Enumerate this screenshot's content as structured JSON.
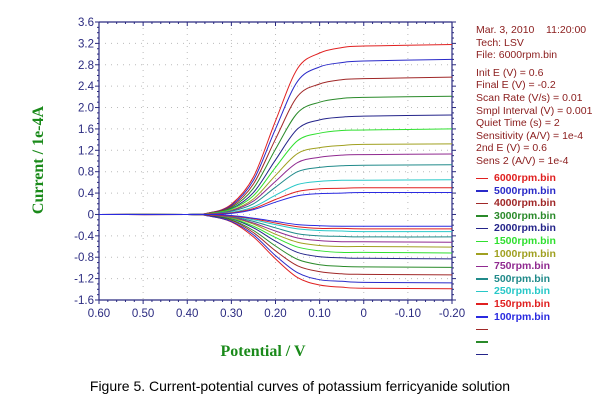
{
  "info": {
    "date": "Mar. 3, 2010    11:20:00",
    "tech": "Tech: LSV",
    "file": "File: 6000rpm.bin",
    "params": [
      "Init E (V) = 0.6",
      "Final E (V) = -0.2",
      "Scan Rate (V/s) = 0.01",
      "Smpl Interval (V) = 0.001",
      "Quiet Time (s) = 2",
      "Sensitivity (A/V) = 1e-4",
      "2nd E (V) = 0.6",
      "Sens 2 (A/V) = 1e-4"
    ]
  },
  "caption": "Figure 5. Current-potential curves of potassium ferricyanide solution",
  "chart_data": {
    "type": "line",
    "xlabel": "Potential / V",
    "ylabel": "Current / 1e-4A",
    "xlim": [
      0.6,
      -0.2
    ],
    "ylim": [
      -1.6,
      3.6
    ],
    "x_reversed": true,
    "grid": true,
    "legend_placement": "right",
    "xticks": [
      "0.60",
      "0.50",
      "0.40",
      "0.30",
      "0.20",
      "0.10",
      "0",
      "-0.10",
      "-0.20"
    ],
    "yticks": [
      "3.6",
      "3.2",
      "2.8",
      "2.4",
      "2.0",
      "1.6",
      "1.2",
      "0.8",
      "0.4",
      "0",
      "-0.4",
      "-0.8",
      "-1.2",
      "-1.6"
    ],
    "x": [
      0.6,
      0.4,
      0.35,
      0.3,
      0.25,
      0.2,
      0.15,
      0.1,
      0.05,
      0,
      -0.2
    ],
    "series": [
      {
        "name": "6000rpm.bin",
        "color": "#e02020",
        "y": [
          0,
          0,
          0.03,
          0.19,
          0.7,
          1.75,
          2.73,
          3.02,
          3.12,
          3.15,
          3.18
        ],
        "y2": [
          0,
          0,
          -0.03,
          -0.14,
          -0.42,
          -0.83,
          -1.18,
          -1.32,
          -1.36,
          -1.38,
          -1.39
        ]
      },
      {
        "name": "5000rpm.bin",
        "color": "#2a2ac8",
        "y": [
          0,
          0,
          0.03,
          0.17,
          0.64,
          1.6,
          2.49,
          2.76,
          2.84,
          2.87,
          2.9
        ],
        "y2": [
          0,
          0,
          -0.03,
          -0.13,
          -0.38,
          -0.77,
          -1.09,
          -1.22,
          -1.25,
          -1.27,
          -1.28
        ]
      },
      {
        "name": "4000rpm.bin",
        "color": "#a02828",
        "y": [
          0,
          0,
          0.03,
          0.15,
          0.57,
          1.41,
          2.21,
          2.44,
          2.52,
          2.54,
          2.57
        ],
        "y2": [
          0,
          0,
          -0.02,
          -0.11,
          -0.34,
          -0.68,
          -0.96,
          -1.07,
          -1.11,
          -1.12,
          -1.13
        ]
      },
      {
        "name": "3000rpm.bin",
        "color": "#2a8a2a",
        "y": [
          0,
          0,
          0.02,
          0.13,
          0.49,
          1.22,
          1.9,
          2.1,
          2.17,
          2.19,
          2.21
        ],
        "y2": [
          0,
          0,
          -0.02,
          -0.1,
          -0.3,
          -0.59,
          -0.84,
          -0.94,
          -0.97,
          -0.98,
          -0.99
        ]
      },
      {
        "name": "2000rpm.bin",
        "color": "#24248a",
        "y": [
          0,
          0,
          0.02,
          0.11,
          0.41,
          1.02,
          1.6,
          1.77,
          1.82,
          1.84,
          1.86
        ],
        "y2": [
          0,
          0,
          -0.02,
          -0.08,
          -0.25,
          -0.5,
          -0.71,
          -0.79,
          -0.81,
          -0.82,
          -0.83
        ]
      },
      {
        "name": "1500rpm.bin",
        "color": "#30e030",
        "y": [
          0,
          0,
          0.02,
          0.1,
          0.35,
          0.88,
          1.38,
          1.52,
          1.57,
          1.58,
          1.6
        ],
        "y2": [
          0,
          0,
          -0.01,
          -0.07,
          -0.22,
          -0.43,
          -0.61,
          -0.68,
          -0.71,
          -0.71,
          -0.72
        ]
      },
      {
        "name": "1000rpm.bin",
        "color": "#a0a020",
        "y": [
          0,
          0,
          0.01,
          0.08,
          0.29,
          0.73,
          1.14,
          1.25,
          1.29,
          1.31,
          1.32
        ],
        "y2": [
          0,
          0,
          -0.01,
          -0.06,
          -0.18,
          -0.37,
          -0.52,
          -0.58,
          -0.6,
          -0.6,
          -0.61
        ]
      },
      {
        "name": "750rpm.bin",
        "color": "#902a90",
        "y": [
          0,
          0,
          0.01,
          0.07,
          0.25,
          0.62,
          0.97,
          1.07,
          1.11,
          1.12,
          1.13
        ],
        "y2": [
          0,
          0,
          -0.01,
          -0.05,
          -0.16,
          -0.31,
          -0.44,
          -0.49,
          -0.51,
          -0.51,
          -0.52
        ]
      },
      {
        "name": "500rpm.bin",
        "color": "#208a8a",
        "y": [
          0,
          0,
          0.01,
          0.06,
          0.2,
          0.51,
          0.8,
          0.88,
          0.91,
          0.92,
          0.93
        ],
        "y2": [
          0,
          0,
          -0.01,
          -0.04,
          -0.13,
          -0.25,
          -0.36,
          -0.4,
          -0.41,
          -0.42,
          -0.42
        ]
      },
      {
        "name": "250rpm.bin",
        "color": "#28c8c8",
        "y": [
          0,
          0,
          0.01,
          0.04,
          0.14,
          0.36,
          0.56,
          0.62,
          0.64,
          0.64,
          0.65
        ],
        "y2": [
          0,
          0,
          -0.01,
          -0.03,
          -0.1,
          -0.19,
          -0.27,
          -0.3,
          -0.31,
          -0.32,
          -0.32
        ]
      },
      {
        "name": "150rpm.bin",
        "color": "#e02020",
        "y": [
          0,
          0,
          0.01,
          0.03,
          0.11,
          0.28,
          0.43,
          0.48,
          0.49,
          0.5,
          0.5
        ],
        "y2": [
          0,
          0,
          -0.01,
          -0.03,
          -0.08,
          -0.16,
          -0.23,
          -0.26,
          -0.26,
          -0.27,
          -0.27
        ]
      },
      {
        "name": "100rpm.bin",
        "color": "#2a2ae0",
        "y": [
          0,
          0,
          0,
          0.02,
          0.09,
          0.23,
          0.35,
          0.39,
          0.4,
          0.41,
          0.41
        ],
        "y2": [
          0,
          0,
          0,
          -0.02,
          -0.07,
          -0.13,
          -0.19,
          -0.21,
          -0.22,
          -0.22,
          -0.22
        ]
      }
    ],
    "unlabeled_legend_colors": [
      "#a02828",
      "#2a8a2a",
      "#24248a"
    ]
  }
}
